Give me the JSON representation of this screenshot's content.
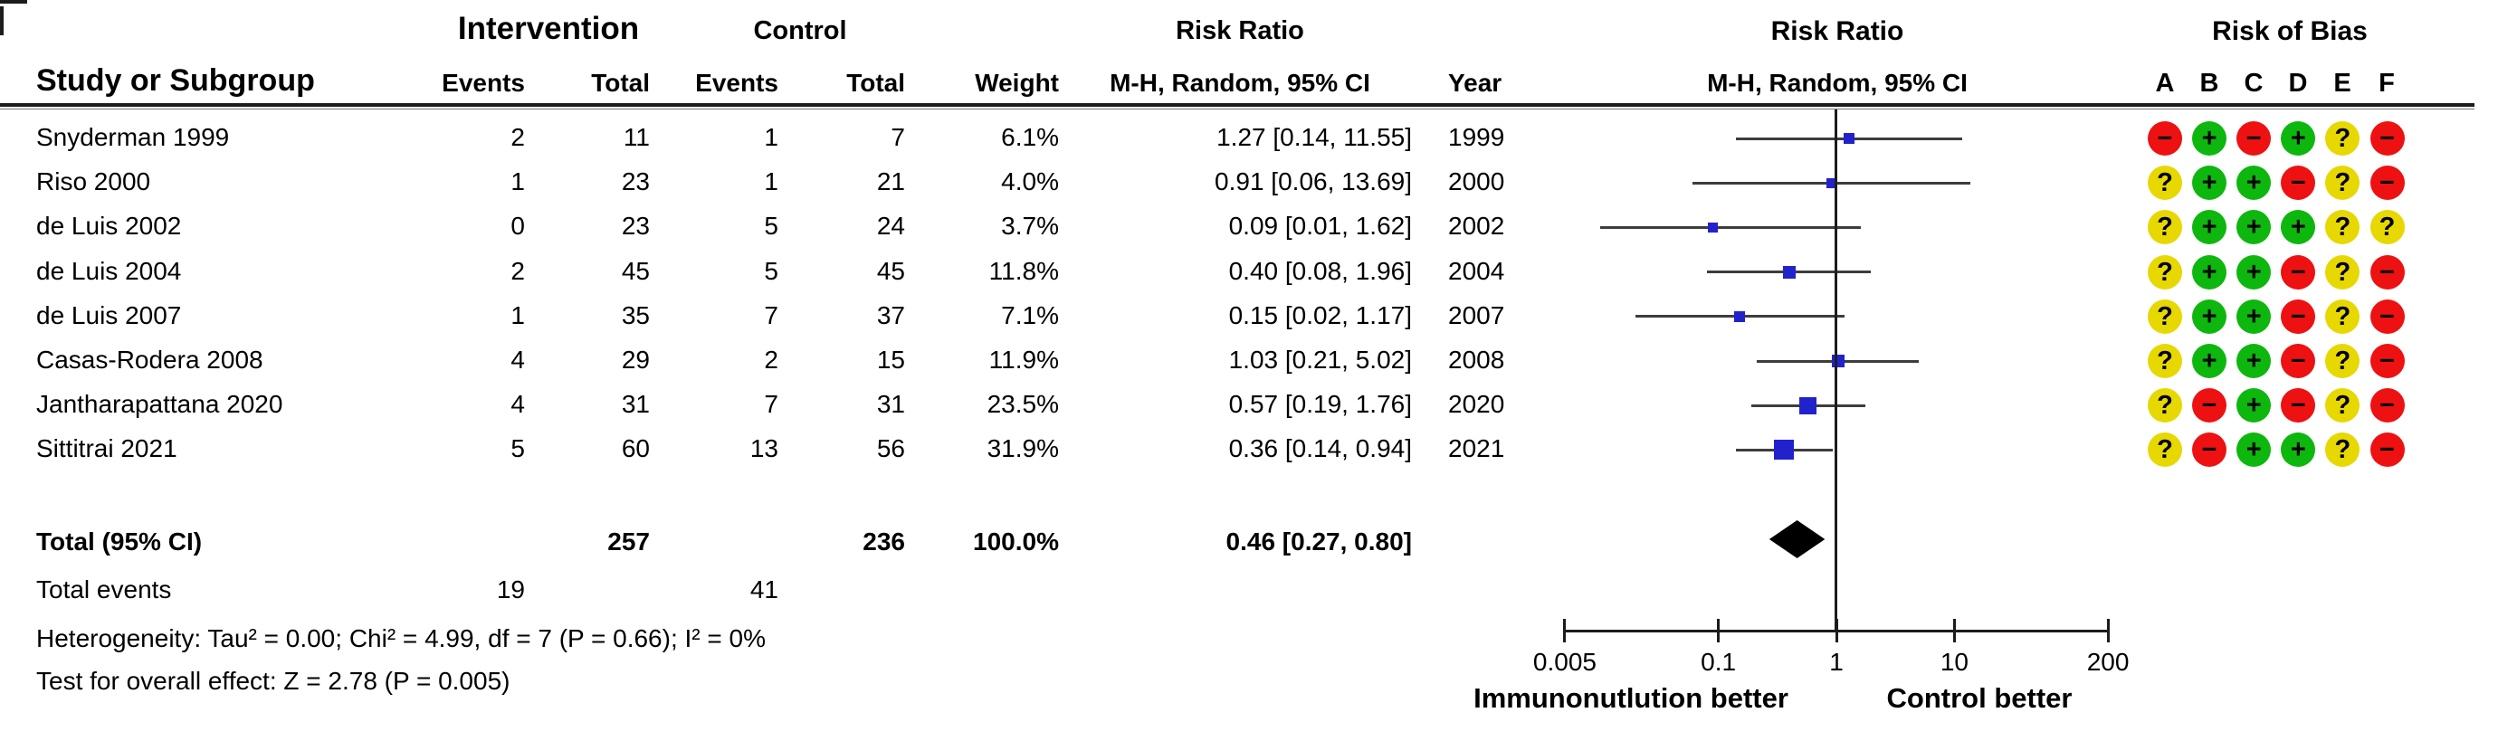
{
  "header": {
    "group1": "Intervention",
    "group2": "Control",
    "study_col": "Study or Subgroup",
    "events_col": "Events",
    "total_col": "Total",
    "weight_col": "Weight",
    "effect_col_title": "Risk Ratio",
    "effect_col_sub": "M-H, Random, 95% CI",
    "year_col": "Year",
    "plot_title": "Risk Ratio",
    "plot_sub": "M-H, Random, 95% CI",
    "rob_title": "Risk of Bias",
    "rob_cols": [
      "A",
      "B",
      "C",
      "D",
      "E",
      "F"
    ]
  },
  "studies": [
    {
      "name": "Snyderman 1999",
      "events1": "2",
      "total1": "11",
      "events2": "1",
      "total2": "7",
      "weight": "6.1%",
      "estimate_label": "1.27 [0.14, 11.55]",
      "year": "1999",
      "rob": [
        "-",
        "+",
        "-",
        "+",
        "?",
        "-"
      ]
    },
    {
      "name": "Riso 2000",
      "events1": "1",
      "total1": "23",
      "events2": "1",
      "total2": "21",
      "weight": "4.0%",
      "estimate_label": "0.91 [0.06, 13.69]",
      "year": "2000",
      "rob": [
        "?",
        "+",
        "+",
        "-",
        "?",
        "-"
      ]
    },
    {
      "name": "de Luis 2002",
      "events1": "0",
      "total1": "23",
      "events2": "5",
      "total2": "24",
      "weight": "3.7%",
      "estimate_label": "0.09 [0.01, 1.62]",
      "year": "2002",
      "rob": [
        "?",
        "+",
        "+",
        "+",
        "?",
        "?"
      ]
    },
    {
      "name": "de Luis 2004",
      "events1": "2",
      "total1": "45",
      "events2": "5",
      "total2": "45",
      "weight": "11.8%",
      "estimate_label": "0.40 [0.08, 1.96]",
      "year": "2004",
      "rob": [
        "?",
        "+",
        "+",
        "-",
        "?",
        "-"
      ]
    },
    {
      "name": "de Luis 2007",
      "events1": "1",
      "total1": "35",
      "events2": "7",
      "total2": "37",
      "weight": "7.1%",
      "estimate_label": "0.15 [0.02, 1.17]",
      "year": "2007",
      "rob": [
        "?",
        "+",
        "+",
        "-",
        "?",
        "-"
      ]
    },
    {
      "name": "Casas-Rodera 2008",
      "events1": "4",
      "total1": "29",
      "events2": "2",
      "total2": "15",
      "weight": "11.9%",
      "estimate_label": "1.03 [0.21, 5.02]",
      "year": "2008",
      "rob": [
        "?",
        "+",
        "+",
        "-",
        "?",
        "-"
      ]
    },
    {
      "name": "Jantharapattana 2020",
      "events1": "4",
      "total1": "31",
      "events2": "7",
      "total2": "31",
      "weight": "23.5%",
      "estimate_label": "0.57 [0.19, 1.76]",
      "year": "2020",
      "rob": [
        "?",
        "-",
        "+",
        "-",
        "?",
        "-"
      ]
    },
    {
      "name": "Sittitrai 2021",
      "events1": "5",
      "total1": "60",
      "events2": "13",
      "total2": "56",
      "weight": "31.9%",
      "estimate_label": "0.36 [0.14, 0.94]",
      "year": "2021",
      "rob": [
        "?",
        "-",
        "+",
        "+",
        "?",
        "-"
      ]
    }
  ],
  "total": {
    "label": "Total (95% CI)",
    "total1": "257",
    "total2": "236",
    "weight": "100.0%",
    "estimate_label": "0.46 [0.27, 0.80]"
  },
  "total_events": {
    "label": "Total events",
    "intervention": "19",
    "control": "41"
  },
  "heterogeneity": "Heterogeneity: Tau² = 0.00; Chi² = 4.99, df = 7 (P = 0.66); I² = 0%",
  "overall_effect": "Test for overall effect: Z = 2.78 (P = 0.005)",
  "chart_data": {
    "type": "forest",
    "effect_measure": "Risk Ratio",
    "method": "M-H, Random, 95% CI",
    "x_scale": "log",
    "xlim": [
      0.005,
      200
    ],
    "x_ticks": [
      0.005,
      0.1,
      1,
      10,
      200
    ],
    "x_tick_labels": [
      "0.005",
      "0.1",
      "1",
      "10",
      "200"
    ],
    "direction_labels": {
      "left": "Immunonutlution better",
      "right": "Control better"
    },
    "studies": [
      {
        "name": "Snyderman 1999",
        "rr": 1.27,
        "ci_low": 0.14,
        "ci_high": 11.55,
        "weight_pct": 6.1
      },
      {
        "name": "Riso 2000",
        "rr": 0.91,
        "ci_low": 0.06,
        "ci_high": 13.69,
        "weight_pct": 4.0
      },
      {
        "name": "de Luis 2002",
        "rr": 0.09,
        "ci_low": 0.01,
        "ci_high": 1.62,
        "weight_pct": 3.7
      },
      {
        "name": "de Luis 2004",
        "rr": 0.4,
        "ci_low": 0.08,
        "ci_high": 1.96,
        "weight_pct": 11.8
      },
      {
        "name": "de Luis 2007",
        "rr": 0.15,
        "ci_low": 0.02,
        "ci_high": 1.17,
        "weight_pct": 7.1
      },
      {
        "name": "Casas-Rodera 2008",
        "rr": 1.03,
        "ci_low": 0.21,
        "ci_high": 5.02,
        "weight_pct": 11.9
      },
      {
        "name": "Jantharapattana 2020",
        "rr": 0.57,
        "ci_low": 0.19,
        "ci_high": 1.76,
        "weight_pct": 23.5
      },
      {
        "name": "Sittitrai 2021",
        "rr": 0.36,
        "ci_low": 0.14,
        "ci_high": 0.94,
        "weight_pct": 31.9
      }
    ],
    "total": {
      "rr": 0.46,
      "ci_low": 0.27,
      "ci_high": 0.8,
      "weight_pct": 100.0
    }
  },
  "colors": {
    "square_blue": "#2222cc",
    "ci_line": "#3d3d3d",
    "axis": "#1c1c1c",
    "diamond": "#000000",
    "rob_plus_green": "#0db70d",
    "rob_minus_red": "#ee1111",
    "rob_question_yellow": "#e6d800"
  }
}
